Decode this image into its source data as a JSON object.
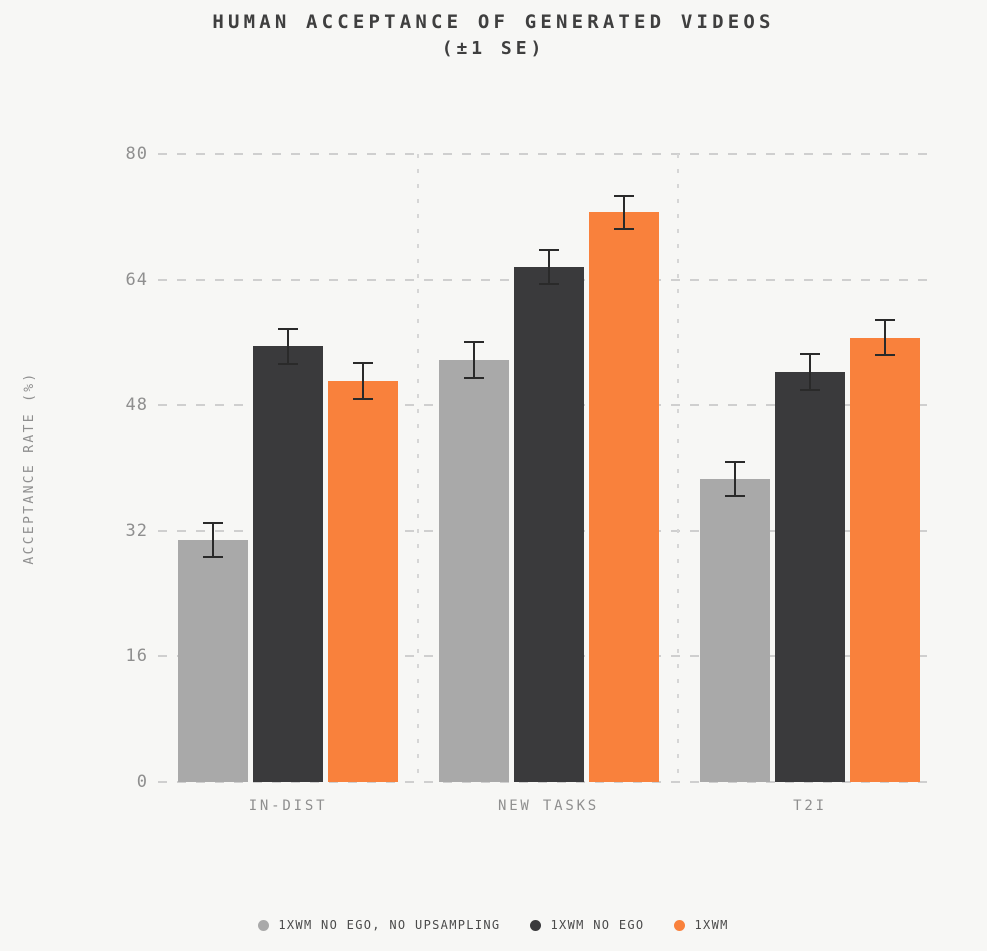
{
  "title": {
    "line1": "HUMAN ACCEPTANCE OF GENERATED VIDEOS",
    "line2": "(±1 SE)"
  },
  "y_axis": {
    "label": "ACCEPTANCE RATE (%)",
    "ticks": [
      80,
      64,
      48,
      32,
      16,
      0
    ]
  },
  "x_axis": {
    "labels": [
      "IN-DIST",
      "NEW TASKS",
      "T2I"
    ]
  },
  "legend": [
    {
      "label": "1XWM NO EGO, NO UPSAMPLING",
      "color": "#A9A9A9"
    },
    {
      "label": "1XWM NO EGO",
      "color": "#3A3A3C"
    },
    {
      "label": "1XWM",
      "color": "#F9813C"
    }
  ],
  "colors": {
    "background": "#F7F7F5",
    "grid": "#CFCFCF",
    "group_separator": "#D6D6D6",
    "error_bar": "#2A2A2A",
    "title_text": "#3F3F3F",
    "axis_text": "#8F8F8F",
    "legend_text": "#4B4B4B"
  },
  "chart_data": {
    "type": "bar",
    "title": "HUMAN ACCEPTANCE OF GENERATED VIDEOS (±1 SE)",
    "xlabel": "",
    "ylabel": "ACCEPTANCE RATE (%)",
    "categories": [
      "IN-DIST",
      "NEW TASKS",
      "T2I"
    ],
    "series": [
      {
        "name": "1XWM NO EGO, NO UPSAMPLING",
        "color": "#A9A9A9",
        "values": [
          30.8,
          53.8,
          38.6
        ],
        "se": [
          2.2,
          2.3,
          2.2
        ]
      },
      {
        "name": "1XWM NO EGO",
        "color": "#3A3A3C",
        "values": [
          55.5,
          65.6,
          52.2
        ],
        "se": [
          2.2,
          2.2,
          2.3
        ]
      },
      {
        "name": "1XWM",
        "color": "#F9813C",
        "values": [
          51.1,
          72.6,
          56.6
        ],
        "se": [
          2.3,
          2.1,
          2.2
        ]
      }
    ],
    "ylim": [
      0,
      80
    ],
    "yticks": [
      0,
      16,
      32,
      48,
      64,
      80
    ],
    "error_bars": "±1 SE",
    "grid": "horizontal dashed gridlines at yticks; dashed vertical separators between category groups",
    "legend_position": "bottom center"
  }
}
